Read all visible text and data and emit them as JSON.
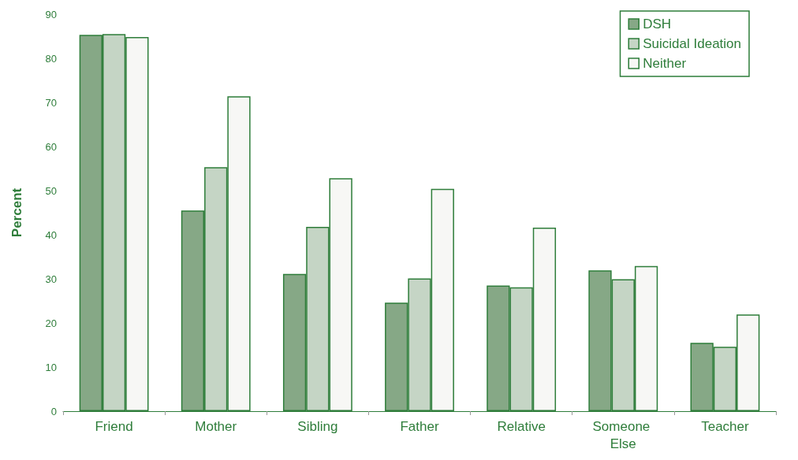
{
  "chart_data": {
    "type": "bar",
    "ylabel": "Percent",
    "categories": [
      "Friend",
      "Mother",
      "Sibling",
      "Father",
      "Relative",
      "Someone Else",
      "Teacher"
    ],
    "series": [
      {
        "name": "DSH",
        "color": "#86a886",
        "values": [
          85.3,
          45.5,
          31.1,
          24.6,
          28.5,
          31.9,
          15.5
        ]
      },
      {
        "name": "Suicidal Ideation",
        "color": "#c5d5c5",
        "values": [
          85.5,
          55.3,
          41.8,
          30.1,
          28.1,
          29.9,
          14.6
        ]
      },
      {
        "name": "Neither",
        "color": "#f7f7f5",
        "values": [
          84.8,
          71.4,
          52.8,
          50.4,
          41.6,
          32.9,
          21.9
        ]
      }
    ],
    "ylim": [
      0,
      90
    ],
    "yticks": [
      0,
      10,
      20,
      30,
      40,
      50,
      60,
      70,
      80,
      90
    ],
    "grid": false,
    "legend": "top right"
  }
}
